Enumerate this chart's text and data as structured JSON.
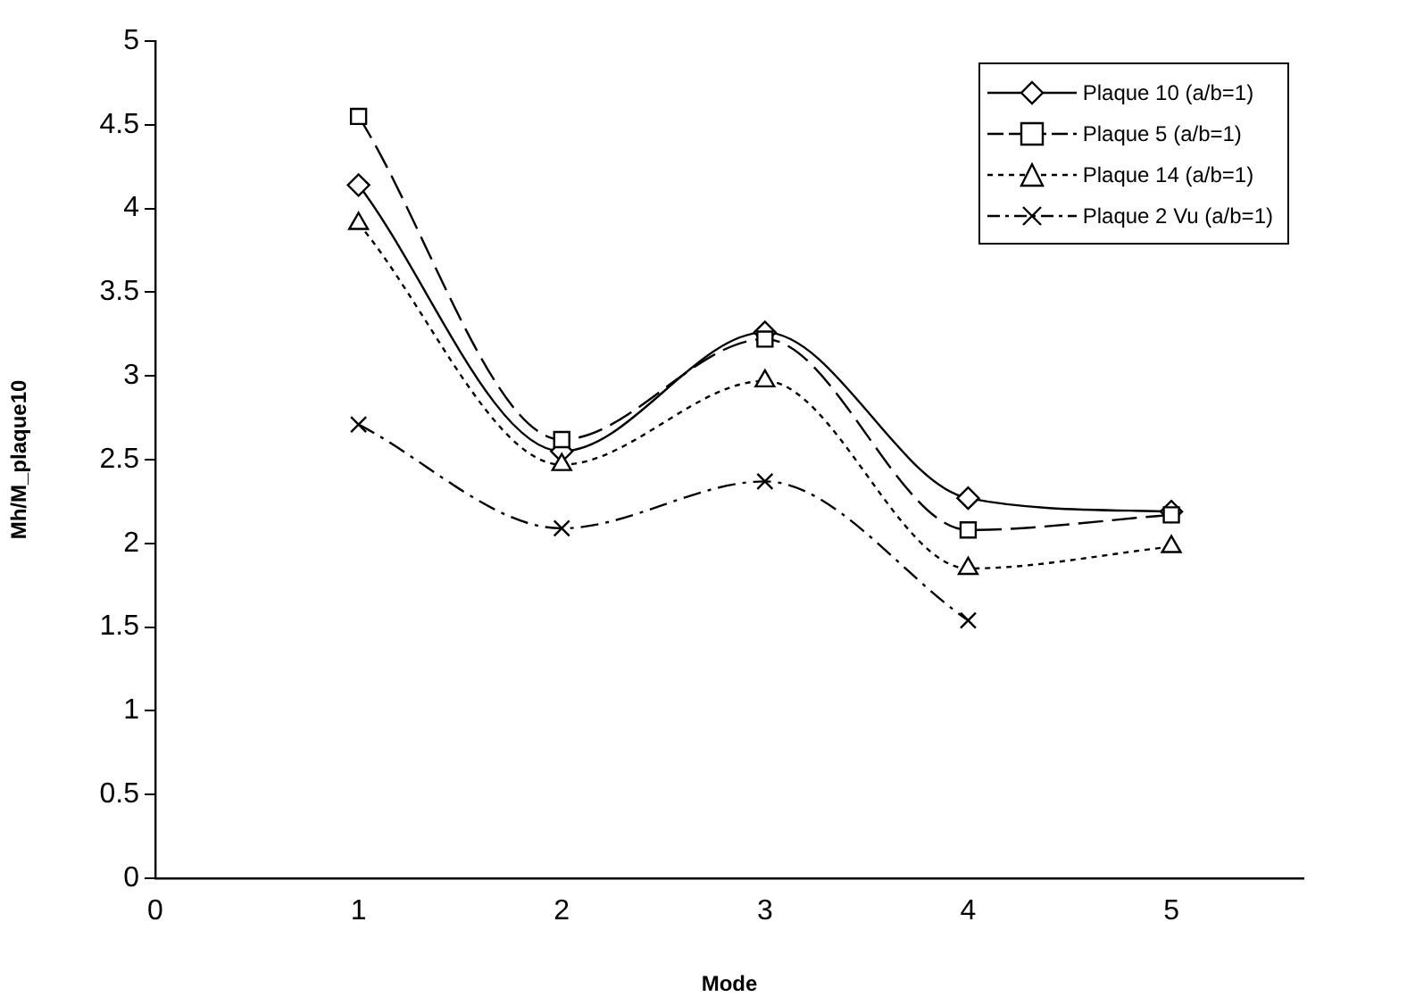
{
  "chart_data": {
    "type": "line",
    "xlabel": "Mode",
    "ylabel": "Mh/M_plaque10",
    "x": [
      1,
      2,
      3,
      4,
      5
    ],
    "xlim": [
      0,
      5.65
    ],
    "xticks": [
      0,
      1,
      2,
      3,
      4,
      5
    ],
    "ylim": [
      0,
      5
    ],
    "yticks": [
      0,
      0.5,
      1,
      1.5,
      2,
      2.5,
      3,
      3.5,
      4,
      4.5,
      5
    ],
    "grid": false,
    "legend": "top right",
    "series": [
      {
        "name": "Plaque 10 (a/b=1)",
        "color": "#000000",
        "marker": "diamond",
        "line_style": "solid",
        "values": [
          4.14,
          2.55,
          3.26,
          2.27,
          2.19
        ]
      },
      {
        "name": "Plaque 5 (a/b=1)",
        "color": "#000000",
        "marker": "square",
        "line_style": "dashed",
        "values": [
          4.55,
          2.62,
          3.22,
          2.08,
          2.17
        ]
      },
      {
        "name": "Plaque 14 (a/b=1)",
        "color": "#000000",
        "marker": "triangle",
        "line_style": "dotted",
        "values": [
          3.91,
          2.47,
          2.97,
          1.85,
          1.98
        ]
      },
      {
        "name": "Plaque 2 Vu (a/b=1)",
        "color": "#000000",
        "marker": "cross",
        "line_style": "dashdot",
        "values": [
          2.71,
          2.09,
          2.37,
          1.54,
          null
        ]
      }
    ]
  }
}
